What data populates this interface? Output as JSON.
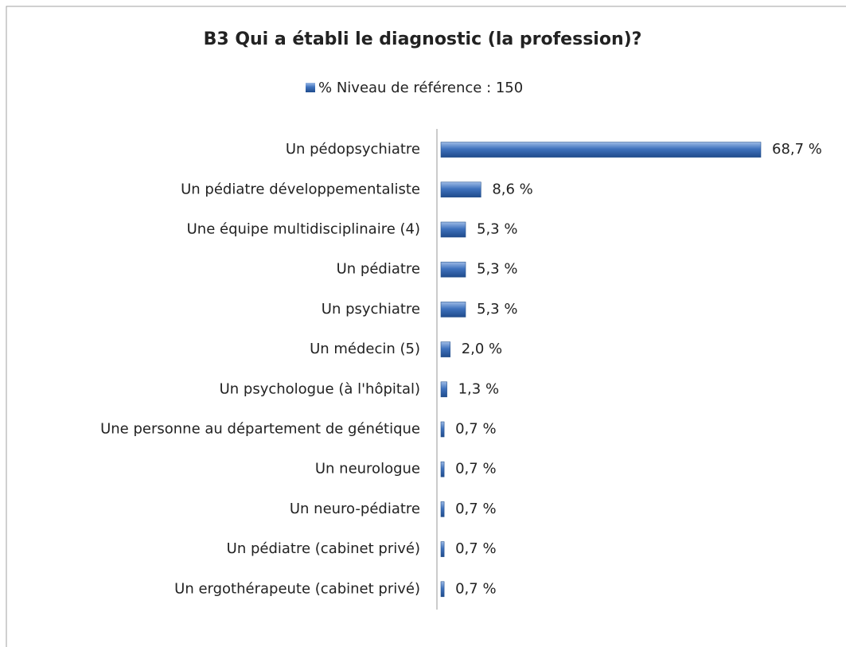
{
  "chart_data": {
    "type": "bar",
    "orientation": "horizontal",
    "title": "B3  Qui a établi le diagnostic (la profession)?",
    "categories": [
      "Un pédopsychiatre",
      "Un pédiatre développementaliste",
      "Une équipe multidisciplinaire (4)",
      "Un pédiatre",
      "Un psychiatre",
      "Un médecin (5)",
      "Un psychologue (à l'hôpital)",
      "Une personne  au département de génétique",
      "Un neurologue",
      "Un neuro-pédiatre",
      "Un pédiatre (cabinet privé)",
      "Un ergothérapeute (cabinet privé)"
    ],
    "series": [
      {
        "name": "% Niveau de référence : 150",
        "color": "#3f72bd",
        "values": [
          68.7,
          8.6,
          5.3,
          5.3,
          5.3,
          2.0,
          1.3,
          0.7,
          0.7,
          0.7,
          0.7,
          0.7
        ],
        "value_labels": [
          "68,7 %",
          "8,6 %",
          "5,3 %",
          "5,3 %",
          "5,3 %",
          "2,0 %",
          "1,3 %",
          "0,7 %",
          "0,7 %",
          "0,7 %",
          "0,7 %",
          "0,7 %"
        ]
      }
    ],
    "legend": "top"
  }
}
